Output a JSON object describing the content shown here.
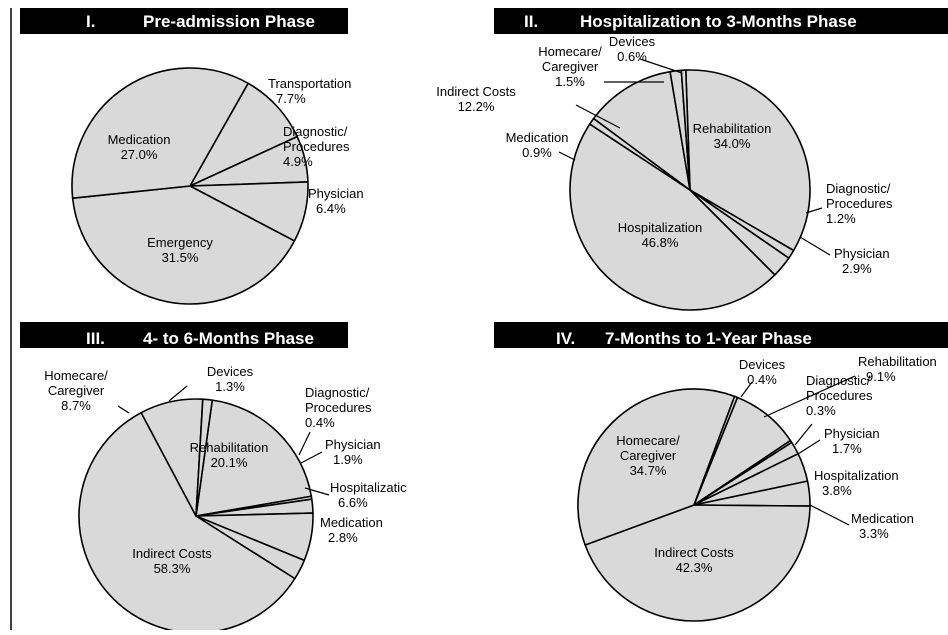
{
  "chart_data": [
    {
      "type": "pie",
      "roman": "I.",
      "title": "Pre-admission Phase",
      "slices": [
        {
          "name": "Transportation",
          "value": 7.7,
          "label": "7.7%"
        },
        {
          "name": "Diagnostic/ Procedures",
          "value": 4.9,
          "label": "4.9%"
        },
        {
          "name": "Physician",
          "value": 6.4,
          "label": "6.4%"
        },
        {
          "name": "Emergency",
          "value": 31.5,
          "label": "31.5%"
        },
        {
          "name": "Medication",
          "value": 27.0,
          "label": "27.0%"
        }
      ]
    },
    {
      "type": "pie",
      "roman": "II.",
      "title": "Hospitalization to 3-Months Phase",
      "slices": [
        {
          "name": "Rehabilitation",
          "value": 34.0,
          "label": "34.0%"
        },
        {
          "name": "Diagnostic/ Procedures",
          "value": 1.2,
          "label": "1.2%"
        },
        {
          "name": "Physician",
          "value": 2.9,
          "label": "2.9%"
        },
        {
          "name": "Hospitalization",
          "value": 46.8,
          "label": "46.8%"
        },
        {
          "name": "Medication",
          "value": 0.9,
          "label": "0.9%"
        },
        {
          "name": "Indirect Costs",
          "value": 12.2,
          "label": "12.2%"
        },
        {
          "name": "Homecare/ Caregiver",
          "value": 1.5,
          "label": "1.5%"
        },
        {
          "name": "Devices",
          "value": 0.6,
          "label": "0.6%"
        }
      ]
    },
    {
      "type": "pie",
      "roman": "III.",
      "title": "4- to 6-Months Phase",
      "slices": [
        {
          "name": "Rehabilitation",
          "value": 20.1,
          "label": "20.1%"
        },
        {
          "name": "Diagnostic/ Procedures",
          "value": 0.4,
          "label": "0.4%"
        },
        {
          "name": "Physician",
          "value": 1.9,
          "label": "1.9%"
        },
        {
          "name": "Hospitalizatic",
          "value": 6.6,
          "label": "6.6%"
        },
        {
          "name": "Medication",
          "value": 2.8,
          "label": "2.8%"
        },
        {
          "name": "Indirect Costs",
          "value": 58.3,
          "label": "58.3%"
        },
        {
          "name": "Homecare/ Caregiver",
          "value": 8.7,
          "label": "8.7%"
        },
        {
          "name": "Devices",
          "value": 1.3,
          "label": "1.3%"
        }
      ]
    },
    {
      "type": "pie",
      "roman": "IV.",
      "title": "7-Months to 1-Year Phase",
      "slices": [
        {
          "name": "Rehabilitation",
          "value": 9.1,
          "label": "9.1%"
        },
        {
          "name": "Diagnostic/ Procedures",
          "value": 0.3,
          "label": "0.3%"
        },
        {
          "name": "Physician",
          "value": 1.7,
          "label": "1.7%"
        },
        {
          "name": "Hospitalization",
          "value": 3.8,
          "label": "3.8%"
        },
        {
          "name": "Medication",
          "value": 3.3,
          "label": "3.3%"
        },
        {
          "name": "Indirect Costs",
          "value": 42.3,
          "label": "42.3%"
        },
        {
          "name": "Homecare/ Caregiver",
          "value": 34.7,
          "label": "34.7%"
        },
        {
          "name": "Devices",
          "value": 0.4,
          "label": "0.4%"
        }
      ]
    }
  ],
  "colors": {
    "slice_fill": "#d9d9d9",
    "slice_stroke": "#000000",
    "title_bar": "#000000",
    "title_text": "#ffffff"
  }
}
